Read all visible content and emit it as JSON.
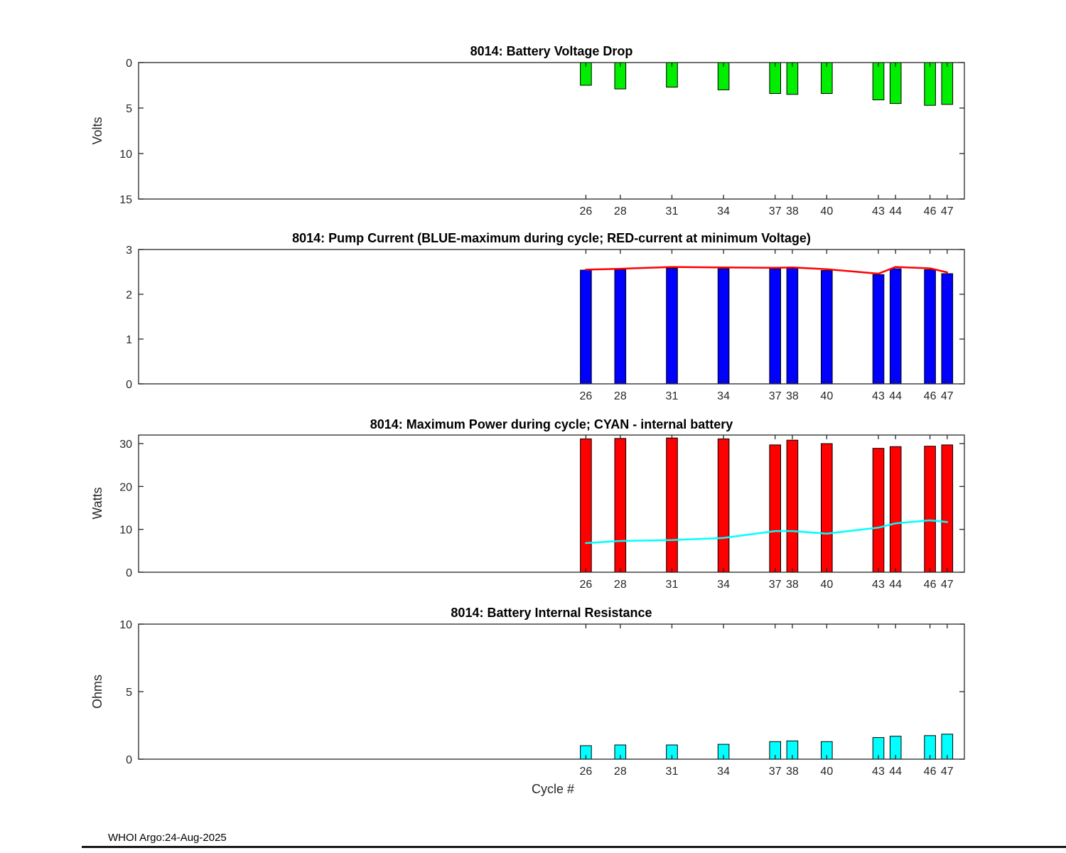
{
  "figure": {
    "xlabel": "Cycle #",
    "footer": "WHOI Argo:24-Aug-2025"
  },
  "chart_data": [
    {
      "type": "bar",
      "title": "8014: Battery Voltage Drop",
      "ylabel": "Volts",
      "xlim": [
        0,
        48
      ],
      "ylim": [
        0,
        15
      ],
      "y_inverted": true,
      "yticks": [
        0,
        5,
        10,
        15
      ],
      "categories": [
        26,
        28,
        31,
        34,
        37,
        38,
        40,
        43,
        44,
        46,
        47
      ],
      "bar_color": "#00ee00",
      "values": [
        2.5,
        2.9,
        2.7,
        3.0,
        3.4,
        3.5,
        3.4,
        4.1,
        4.5,
        4.7,
        4.6
      ]
    },
    {
      "type": "bar",
      "title": "8014: Pump Current (BLUE-maximum during cycle; RED-current at minimum Voltage)",
      "ylabel": "",
      "xlim": [
        0,
        48
      ],
      "ylim": [
        0,
        3
      ],
      "y_inverted": false,
      "yticks": [
        0,
        1,
        2,
        3
      ],
      "categories": [
        26,
        28,
        31,
        34,
        37,
        38,
        40,
        43,
        44,
        46,
        47
      ],
      "bar_color": "#0000ff",
      "values": [
        2.54,
        2.55,
        2.58,
        2.57,
        2.57,
        2.58,
        2.53,
        2.44,
        2.57,
        2.55,
        2.46
      ],
      "line": {
        "label": "current at minimum Voltage",
        "color": "#ff0000",
        "values": [
          2.55,
          2.57,
          2.61,
          2.6,
          2.59,
          2.6,
          2.56,
          2.46,
          2.61,
          2.58,
          2.49
        ]
      }
    },
    {
      "type": "bar",
      "title": "8014: Maximum Power during cycle; CYAN - internal battery",
      "ylabel": "Watts",
      "xlim": [
        0,
        48
      ],
      "ylim": [
        0,
        32
      ],
      "y_inverted": false,
      "yticks": [
        0,
        10,
        20,
        30
      ],
      "categories": [
        26,
        28,
        31,
        34,
        37,
        38,
        40,
        43,
        44,
        46,
        47
      ],
      "bar_color": "#ff0000",
      "values": [
        31.1,
        31.2,
        31.3,
        31.1,
        29.7,
        30.8,
        30.0,
        28.9,
        29.3,
        29.4,
        29.7
      ],
      "line": {
        "label": "internal battery",
        "color": "#00ffff",
        "values": [
          6.8,
          7.3,
          7.5,
          8.0,
          9.6,
          9.6,
          9.0,
          10.4,
          11.4,
          12.1,
          11.7
        ]
      }
    },
    {
      "type": "bar",
      "title": "8014: Battery Internal Resistance",
      "ylabel": "Ohms",
      "xlim": [
        0,
        48
      ],
      "ylim": [
        0,
        10
      ],
      "y_inverted": false,
      "yticks": [
        0,
        5,
        10
      ],
      "categories": [
        26,
        28,
        31,
        34,
        37,
        38,
        40,
        43,
        44,
        46,
        47
      ],
      "bar_color": "#00ffff",
      "values": [
        1.0,
        1.05,
        1.05,
        1.1,
        1.3,
        1.35,
        1.3,
        1.6,
        1.7,
        1.75,
        1.85
      ]
    }
  ]
}
